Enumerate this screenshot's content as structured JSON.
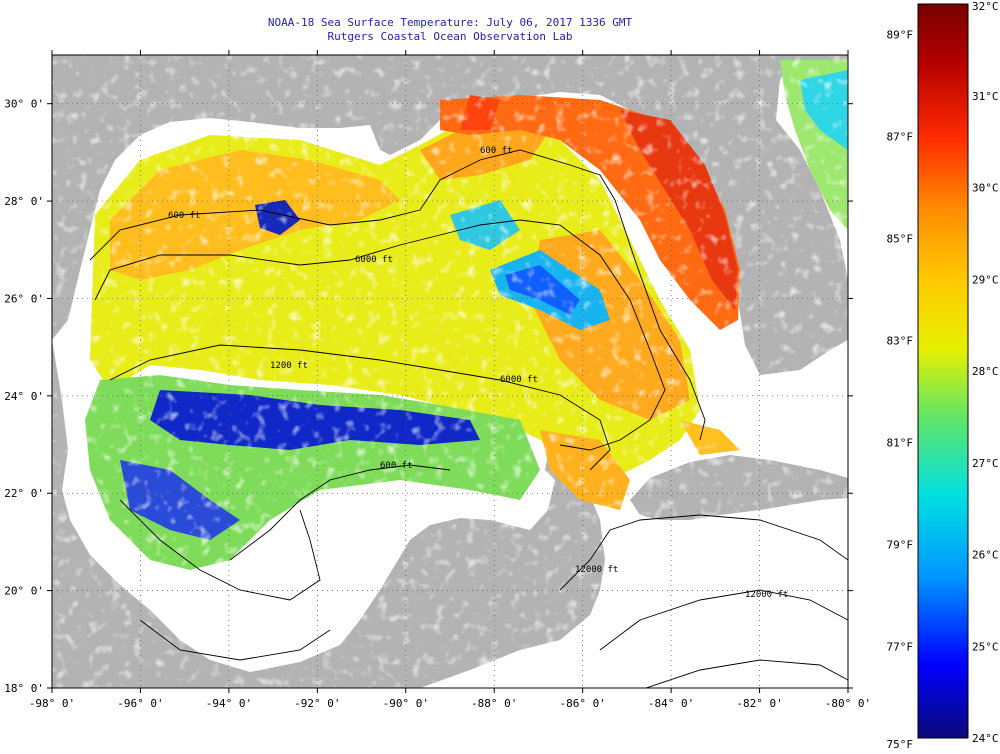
{
  "header": {
    "title": "NOAA-18 Sea Surface Temperature:  July 06, 2017 1336 GMT",
    "subtitle": "Rutgers Coastal Ocean Observation Lab"
  },
  "map": {
    "lat_range": [
      18,
      31
    ],
    "lon_range": [
      -98,
      -80
    ],
    "lat_labels": [
      {
        "lat": 30,
        "text": "30° 0'"
      },
      {
        "lat": 28,
        "text": "28° 0'"
      },
      {
        "lat": 26,
        "text": "26° 0'"
      },
      {
        "lat": 24,
        "text": "24° 0'"
      },
      {
        "lat": 22,
        "text": "22° 0'"
      },
      {
        "lat": 20,
        "text": "20° 0'"
      },
      {
        "lat": 18,
        "text": "18° 0'"
      }
    ],
    "lon_labels": [
      {
        "lon": -98,
        "text": "-98° 0'"
      },
      {
        "lon": -96,
        "text": "-96° 0'"
      },
      {
        "lon": -94,
        "text": "-94° 0'"
      },
      {
        "lon": -92,
        "text": "-92° 0'"
      },
      {
        "lon": -90,
        "text": "-90° 0'"
      },
      {
        "lon": -88,
        "text": "-88° 0'"
      },
      {
        "lon": -86,
        "text": "-86° 0'"
      },
      {
        "lon": -84,
        "text": "-84° 0'"
      },
      {
        "lon": -82,
        "text": "-82° 0'"
      },
      {
        "lon": -80,
        "text": "-80° 0'"
      }
    ],
    "contour_labels": [
      "600 ft",
      "1200 ft",
      "6000 ft",
      "12000 ft"
    ],
    "colors": {
      "land": "#b3b3b3",
      "no_data": "#ffffff",
      "title": "#1f1fb0",
      "contour": "#000000"
    }
  },
  "colorbar": {
    "celsius_range": [
      24,
      32
    ],
    "fahrenheit_range": [
      75,
      89.6
    ],
    "celsius_labels": [
      "32°C",
      "31°C",
      "30°C",
      "29°C",
      "28°C",
      "27°C",
      "26°C",
      "25°C",
      "24°C"
    ],
    "fahrenheit_labels": [
      "89°F",
      "87°F",
      "85°F",
      "83°F",
      "81°F",
      "79°F",
      "77°F",
      "75°F"
    ],
    "stops": [
      "#0a0a78",
      "#0000ff",
      "#0096ff",
      "#00e0e0",
      "#64e664",
      "#e6f000",
      "#ffcc00",
      "#ff8c00",
      "#ff2a00",
      "#b40000",
      "#780000"
    ]
  }
}
